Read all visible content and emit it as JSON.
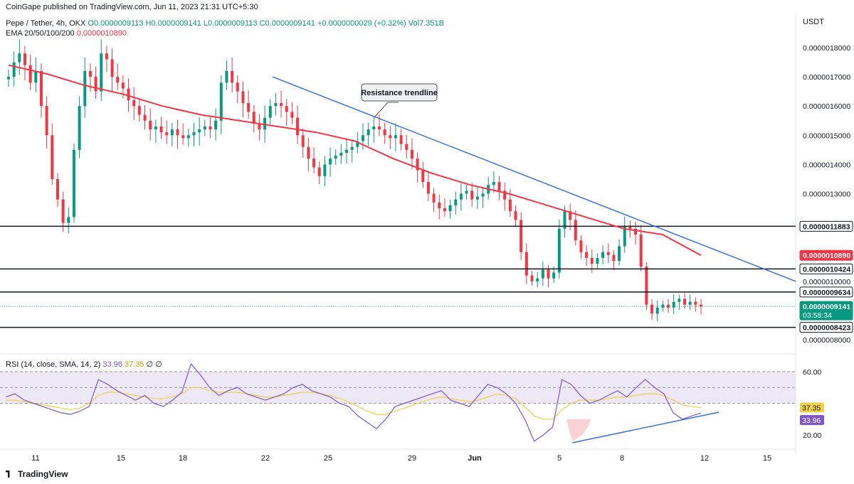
{
  "header": {
    "published": "CoinGape published on TradingView.com, Jun 11, 2023 21:31 UTC+5:30",
    "symbol": "Pepe / Tether, 4h, OKX",
    "ohlc": "O0.0000009113  H0.0000009141  L0.0000009113  C0.0000009141  +0.0000000029 (+0.32%)",
    "volume": "Vol7.351B",
    "ema_label": "EMA 20/50/100/200",
    "ema_value": "0.0000010890"
  },
  "price_axis": {
    "currency": "USDT",
    "ticks": [
      {
        "value": 1.8e-06,
        "label": "0.0000018000"
      },
      {
        "value": 1.7e-06,
        "label": "0.0000017000"
      },
      {
        "value": 1.6e-06,
        "label": "0.0000016000"
      },
      {
        "value": 1.5e-06,
        "label": "0.0000015000"
      },
      {
        "value": 1.4e-06,
        "label": "0.0000014000"
      },
      {
        "value": 1.3e-06,
        "label": "0.0000013000"
      },
      {
        "value": 1e-06,
        "label": "0.0000010000"
      },
      {
        "value": 8e-07,
        "label": "0.0000008000"
      }
    ]
  },
  "levels": [
    {
      "value": 1.1883e-06,
      "label": "0.0000011883"
    },
    {
      "value": 1.0424e-06,
      "label": "0.0000010424"
    },
    {
      "value": 9.634e-07,
      "label": "0.0000009634"
    },
    {
      "value": 8.423e-07,
      "label": "0.0000008423"
    }
  ],
  "ema_tag": {
    "value": 1.089e-06,
    "label": "0.0000010890",
    "color": "#f23645"
  },
  "last_price": {
    "value": 9.141e-07,
    "label": "0.0000009141",
    "countdown": "03:58:34",
    "color": "#089981"
  },
  "annotation": "Resistance trendline",
  "rsi": {
    "legend_label": "RSI (14, close, SMA, 14, 2)",
    "rsi_value": "33.96",
    "sma_value": "37.35",
    "extra": "∅  ∅",
    "tick_labels": [
      "60.00",
      "20.00"
    ],
    "rsi_tag": "33.96",
    "sma_tag": "37.35"
  },
  "time_axis": {
    "labels": [
      "11",
      "15",
      "18",
      "22",
      "25",
      "29",
      "Jun",
      "5",
      "8",
      "12",
      "15"
    ]
  },
  "footer": {
    "brand": "TradingView"
  },
  "colors": {
    "up": "#089981",
    "down": "#f23645",
    "ema": "#f23645",
    "trendline": "#3d6fe0",
    "rsi_line": "#7e57c2",
    "rsi_sma": "#f0d046",
    "rsi_band": "#ede7f6"
  },
  "chart_data": {
    "type": "candlestick",
    "interval": "4h",
    "x_dates": [
      "May 11",
      "May 15",
      "May 18",
      "May 22",
      "May 25",
      "May 29",
      "Jun 1",
      "Jun 5",
      "Jun 8",
      "Jun 12",
      "Jun 15"
    ],
    "ylim": [
      7.5e-07,
      1.8e-06
    ],
    "price_path": [
      [
        1.7e-06,
        1.75e-06,
        1.78e-06,
        1.74e-06,
        1.68e-06,
        1.72e-06,
        1.6e-06,
        1.5e-06,
        1.35e-06,
        1.28e-06,
        1.2e-06,
        1.22e-06,
        1.45e-06,
        1.6e-06,
        1.72e-06,
        1.7e-06,
        1.65e-06,
        1.78e-06,
        1.76e-06,
        1.7e-06
      ],
      [
        1.68e-06,
        1.66e-06,
        1.62e-06,
        1.6e-06,
        1.57e-06,
        1.55e-06,
        1.52e-06,
        1.53e-06,
        1.51e-06,
        1.5e-06,
        1.52e-06,
        1.5e-06,
        1.49e-06,
        1.5e-06,
        1.51e-06,
        1.52e-06,
        1.53e-06,
        1.52e-06,
        1.55e-06,
        1.68e-06
      ],
      [
        1.72e-06,
        1.68e-06,
        1.65e-06,
        1.61e-06,
        1.58e-06,
        1.54e-06,
        1.52e-06,
        1.56e-06,
        1.6e-06,
        1.61e-06,
        1.6e-06,
        1.58e-06,
        1.56e-06,
        1.5e-06,
        1.46e-06,
        1.42e-06,
        1.39e-06,
        1.36e-06,
        1.4e-06,
        1.42e-06
      ],
      [
        1.43e-06,
        1.44e-06,
        1.45e-06,
        1.46e-06,
        1.48e-06,
        1.5e-06,
        1.52e-06,
        1.53e-06,
        1.52e-06,
        1.5e-06,
        1.49e-06,
        1.5e-06,
        1.47e-06,
        1.45e-06,
        1.42e-06,
        1.38e-06,
        1.34e-06,
        1.3e-06,
        1.27e-06,
        1.25e-06
      ],
      [
        1.24e-06,
        1.26e-06,
        1.28e-06,
        1.3e-06,
        1.31e-06,
        1.28e-06,
        1.29e-06,
        1.3e-06,
        1.33e-06,
        1.34e-06,
        1.31e-06,
        1.28e-06,
        1.24e-06,
        1.21e-06,
        1.1e-06,
        1.02e-06,
        1e-06,
        1.01e-06,
        1.04e-06,
        1.01e-06
      ],
      [
        1.03e-06,
        1.18e-06,
        1.24e-06,
        1.21e-06,
        1.14e-06,
        1.1e-06,
        1.08e-06,
        1.06e-06,
        1.08e-06,
        1.1e-06,
        1.09e-06,
        1.07e-06,
        1.12e-06,
        1.19e-06,
        1.18e-06,
        1.16e-06,
        1.05e-06,
        9.2e-07,
        8.9e-07,
        9.1e-07
      ],
      [
        9.2e-07,
        9.1e-07,
        9.3e-07,
        9.4e-07,
        9.2e-07,
        9.3e-07,
        9.2e-07,
        9.14e-07
      ]
    ],
    "ema": [
      1.74e-06,
      1.71e-06,
      1.67e-06,
      1.64e-06,
      1.6e-06,
      1.57e-06,
      1.55e-06,
      1.53e-06,
      1.51e-06,
      1.48e-06,
      1.42e-06,
      1.37e-06,
      1.33e-06,
      1.3e-06,
      1.26e-06,
      1.22e-06,
      1.18e-06,
      1.16e-06,
      1.089e-06
    ],
    "trendline": {
      "from_date": "May 23",
      "from_value": 1.7e-06,
      "to_date": "Jun 14",
      "to_value": 1e-06
    },
    "rsi_series": [
      44,
      46,
      42,
      40,
      38,
      36,
      34,
      33,
      35,
      38,
      55,
      52,
      48,
      45,
      42,
      45,
      40,
      38,
      42,
      47,
      65,
      58,
      50,
      45,
      48,
      50,
      46,
      44,
      42,
      44,
      46,
      50,
      52,
      48,
      46,
      44,
      40,
      38,
      32,
      28,
      24,
      30,
      38,
      40,
      42,
      44,
      46,
      48,
      42,
      40,
      38,
      45,
      52,
      50,
      46,
      40,
      30,
      16,
      20,
      25,
      55,
      52,
      45,
      40,
      42,
      45,
      48,
      44,
      50,
      55,
      50,
      46,
      34,
      30,
      32,
      33.96
    ],
    "rsi_sma_series": [
      42,
      42,
      41,
      40,
      39,
      38,
      37,
      36,
      37,
      40,
      45,
      47,
      47,
      46,
      45,
      44,
      43,
      43,
      44,
      46,
      50,
      50,
      48,
      47,
      47,
      47,
      46,
      45,
      44,
      44,
      45,
      46,
      47,
      47,
      46,
      45,
      43,
      41,
      38,
      35,
      33,
      33,
      35,
      37,
      39,
      41,
      43,
      44,
      43,
      42,
      41,
      42,
      44,
      46,
      45,
      43,
      38,
      32,
      30,
      30,
      36,
      40,
      42,
      42,
      42,
      43,
      44,
      44,
      45,
      46,
      46,
      45,
      42,
      39,
      38,
      37.35
    ],
    "rsi_ylim": [
      10,
      70
    ],
    "rsi_bands": [
      60,
      50,
      40,
      20
    ]
  }
}
